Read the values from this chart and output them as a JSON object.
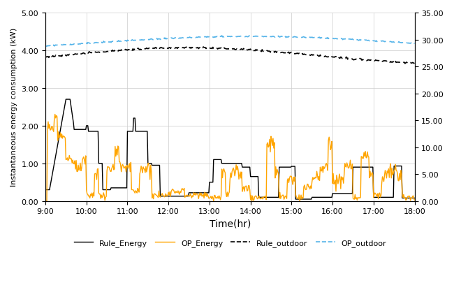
{
  "title": "",
  "xlabel": "Time(hr)",
  "ylabel_left": "Instantaneous energy consumption (kW)",
  "ylabel_right": "",
  "ylim_left": [
    0.0,
    5.0
  ],
  "ylim_right": [
    0.0,
    35.0
  ],
  "yticks_left": [
    0.0,
    1.0,
    2.0,
    3.0,
    4.0,
    5.0
  ],
  "yticks_right": [
    0.0,
    5.0,
    10.0,
    15.0,
    20.0,
    25.0,
    30.0,
    35.0
  ],
  "xtick_labels": [
    "9:00",
    "10:00",
    "11:00",
    "12:00",
    "13:00",
    "14:00",
    "15:00",
    "16:00",
    "17:00",
    "18:00"
  ],
  "colors": {
    "rule_energy": "#000000",
    "op_energy": "#FFA500",
    "rule_outdoor": "#000000",
    "op_outdoor": "#56B4E9"
  },
  "background": "#ffffff",
  "grid_color": "#cccccc"
}
